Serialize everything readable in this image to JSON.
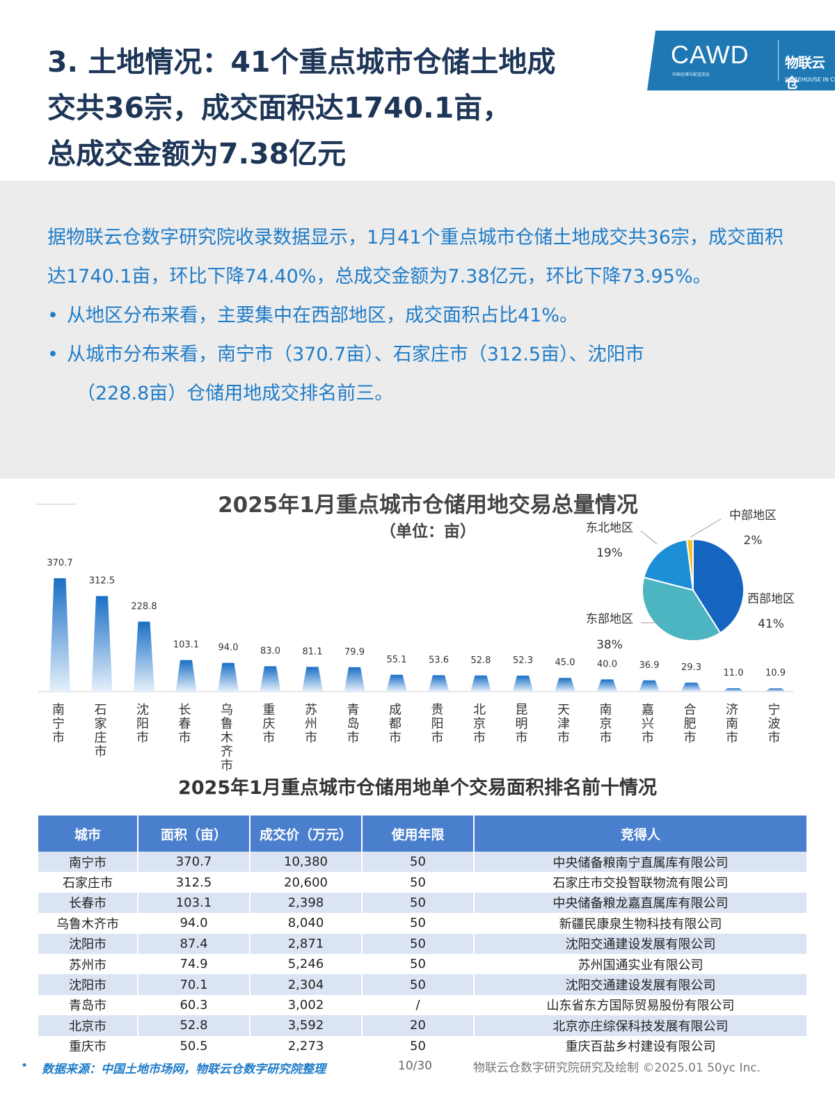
{
  "header": {
    "title_lines": [
      "3. 土地情况：41个重点城市仓储土地成",
      "交共36宗，成交面积达1740.1亩，",
      "总成交金额为7.38亿元"
    ]
  },
  "logo": {
    "brand": "CAWD",
    "sub": "中国仓储与配送协会",
    "partner": "物联云仓",
    "partner_en": "WAREHOUSE IN CLOUD"
  },
  "summary": {
    "paragraph": "据物联云仓数字研究院收录数据显示，1月41个重点城市仓储土地成交共36宗，成交面积达1740.1亩，环比下降74.40%，总成交金额为7.38亿元，环比下降73.95%。",
    "bullet_mark": "•",
    "bullet1": "从地区分布来看，主要集中在西部地区，成交面积占比41%。",
    "bullet2_a": "从城市分布来看，南宁市（370.7亩）、石家庄市（312.5亩）、沈阳市",
    "bullet2_b": "（228.8亩）仓储用地成交排名前三。"
  },
  "chart_data": [
    {
      "type": "bar",
      "title": "2025年1月重点城市仓储用地交易总量情况",
      "subtitle": "（单位：亩）",
      "categories": [
        "南宁市",
        "石家庄市",
        "沈阳市",
        "长春市",
        "乌鲁木齐市",
        "重庆市",
        "苏州市",
        "青岛市",
        "成都市",
        "贵阳市",
        "北京市",
        "昆明市",
        "天津市",
        "南京市",
        "嘉兴市",
        "合肥市",
        "济南市",
        "宁波市"
      ],
      "values": [
        370.7,
        312.5,
        228.8,
        103.1,
        94.0,
        83.0,
        81.1,
        79.9,
        55.1,
        53.6,
        52.8,
        52.3,
        45.0,
        40.0,
        36.9,
        29.3,
        11.0,
        10.9
      ],
      "value_labels": [
        "370.7",
        "312.5",
        "228.8",
        "103.1",
        "94.0",
        "83.0",
        "81.1",
        "79.9",
        "55.1",
        "53.6",
        "52.8",
        "52.3",
        "45.0",
        "40.0",
        "36.9",
        "29.3",
        "11.0",
        "10.9"
      ],
      "color": "#1a6fc4"
    },
    {
      "type": "pie",
      "slices": [
        {
          "label": "西部地区",
          "value": 41,
          "display": "41%",
          "color": "#1565c0"
        },
        {
          "label": "东部地区",
          "value": 38,
          "display": "38%",
          "color": "#4cb5c1"
        },
        {
          "label": "东北地区",
          "value": 19,
          "display": "19%",
          "color": "#1e8fd6"
        },
        {
          "label": "中部地区",
          "value": 2,
          "display": "2%",
          "color": "#f2c12e"
        }
      ]
    }
  ],
  "table": {
    "title": "2025年1月重点城市仓储用地单个交易面积排名前十情况",
    "headers": [
      "城市",
      "面积（亩）",
      "成交价（万元）",
      "使用年限",
      "竞得人"
    ],
    "rows": [
      [
        "南宁市",
        "370.7",
        "10,380",
        "50",
        "中央储备粮南宁直属库有限公司"
      ],
      [
        "石家庄市",
        "312.5",
        "20,600",
        "50",
        "石家庄市交投智联物流有限公司"
      ],
      [
        "长春市",
        "103.1",
        "2,398",
        "50",
        "中央储备粮龙嘉直属库有限公司"
      ],
      [
        "乌鲁木齐市",
        "94.0",
        "8,040",
        "50",
        "新疆民康泉生物科技有限公司"
      ],
      [
        "沈阳市",
        "87.4",
        "2,871",
        "50",
        "沈阳交通建设发展有限公司"
      ],
      [
        "苏州市",
        "74.9",
        "5,246",
        "50",
        "苏州国通实业有限公司"
      ],
      [
        "沈阳市",
        "70.1",
        "2,304",
        "50",
        "沈阳交通建设发展有限公司"
      ],
      [
        "青岛市",
        "60.3",
        "3,002",
        "/",
        "山东省东方国际贸易股份有限公司"
      ],
      [
        "北京市",
        "52.8",
        "3,592",
        "20",
        "北京亦庄综保科技发展有限公司"
      ],
      [
        "重庆市",
        "50.5",
        "2,273",
        "50",
        "重庆百盐乡村建设有限公司"
      ]
    ]
  },
  "footer": {
    "bullet": "•",
    "source": "数据来源：中国土地市场网，物联云仓数字研究院整理",
    "page": "10/30",
    "credit": "物联云仓数字研究院研究及绘制   ©2025.01 50yc Inc."
  }
}
